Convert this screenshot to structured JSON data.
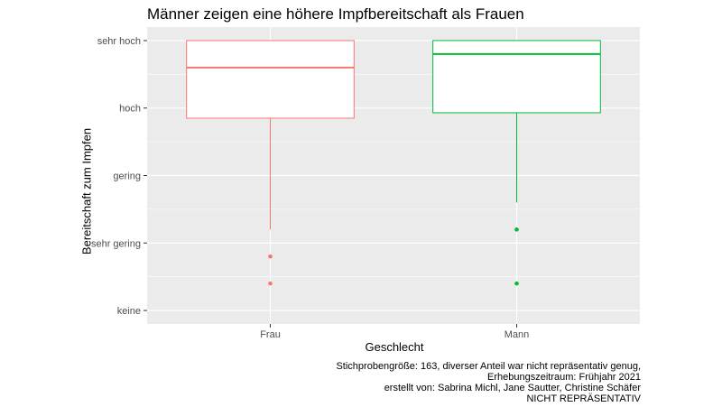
{
  "chart_data": {
    "type": "boxplot",
    "title": "Männer zeigen eine höhere Impfbereitschaft als Frauen",
    "xlabel": "Geschlecht",
    "ylabel": "Bereitschaft zum Impfen",
    "y_scale": "ordinal",
    "y_levels": [
      "keine",
      "sehr gering",
      "gering",
      "hoch",
      "sehr hoch"
    ],
    "ylim": [
      0.8,
      5.2
    ],
    "grid": true,
    "legend": "none",
    "categories": [
      "Frau",
      "Mann"
    ],
    "boxes": [
      {
        "category": "Frau",
        "color": "#F8766D",
        "min": 2.2,
        "q1": 3.85,
        "median": 4.6,
        "q3": 5.0,
        "max": 5.0,
        "outliers": [
          1.8,
          1.4
        ]
      },
      {
        "category": "Mann",
        "color": "#00BA38",
        "min": 2.6,
        "q1": 3.93,
        "median": 4.8,
        "q3": 5.0,
        "max": 5.0,
        "outliers": [
          2.2,
          1.4
        ]
      }
    ],
    "caption": [
      "Stichprobengröße: 163, diverser Anteil war nicht repräsentativ genug,",
      "Erhebungszeitraum: Frühjahr 2021",
      "erstellt von: Sabrina Michl, Jane Sautter, Christine Schäfer",
      "NICHT REPRÄSENTATIV"
    ]
  }
}
